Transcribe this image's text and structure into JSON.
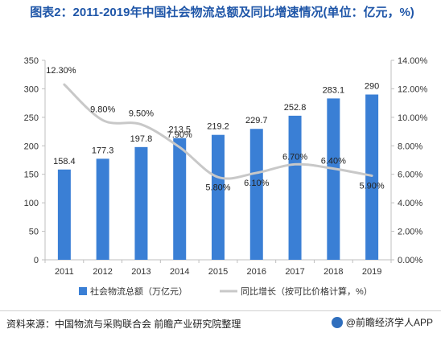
{
  "chart_data": {
    "type": "bar",
    "title": "图表2：2011-2019年中国社会物流总额及同比增速情况(单位：亿元，%)",
    "categories": [
      "2011",
      "2012",
      "2013",
      "2014",
      "2015",
      "2016",
      "2017",
      "2018",
      "2019"
    ],
    "series": [
      {
        "name": "社会物流总额（万亿元）",
        "type": "bar",
        "axis": "left",
        "values": [
          158.4,
          177.3,
          197.8,
          213.5,
          219.2,
          229.7,
          252.8,
          283.1,
          290
        ],
        "labels": [
          "158.4",
          "177.3",
          "197.8",
          "213.5",
          "219.2",
          "229.7",
          "252.8",
          "283.1",
          "290"
        ],
        "color": "#3a7fd5"
      },
      {
        "name": "同比增长（按可比价格计算，%）",
        "type": "line",
        "axis": "right",
        "values": [
          12.3,
          9.8,
          9.5,
          7.9,
          5.8,
          6.1,
          6.7,
          6.4,
          5.9
        ],
        "labels": [
          "12.30%",
          "9.80%",
          "9.50%",
          "7.90%",
          "5.80%",
          "6.10%",
          "6.70%",
          "6.40%",
          "5.90%"
        ],
        "color": "#c8c8c8"
      }
    ],
    "ylim_left": [
      0,
      350
    ],
    "yticks_left": [
      "0",
      "50",
      "100",
      "150",
      "200",
      "250",
      "300",
      "350"
    ],
    "ylim_right": [
      0,
      14
    ],
    "yticks_right": [
      "0.00%",
      "2.00%",
      "4.00%",
      "6.00%",
      "8.00%",
      "10.00%",
      "12.00%",
      "14.00%"
    ],
    "grid": false,
    "legend": "bottom"
  },
  "footer": {
    "source": "资料来源：中国物流与采购联合会 前瞻产业研究院整理",
    "brand": "@前瞻经济学人APP"
  },
  "colors": {
    "title": "#1f56a8",
    "bar": "#3a7fd5",
    "line": "#c8c8c8"
  }
}
